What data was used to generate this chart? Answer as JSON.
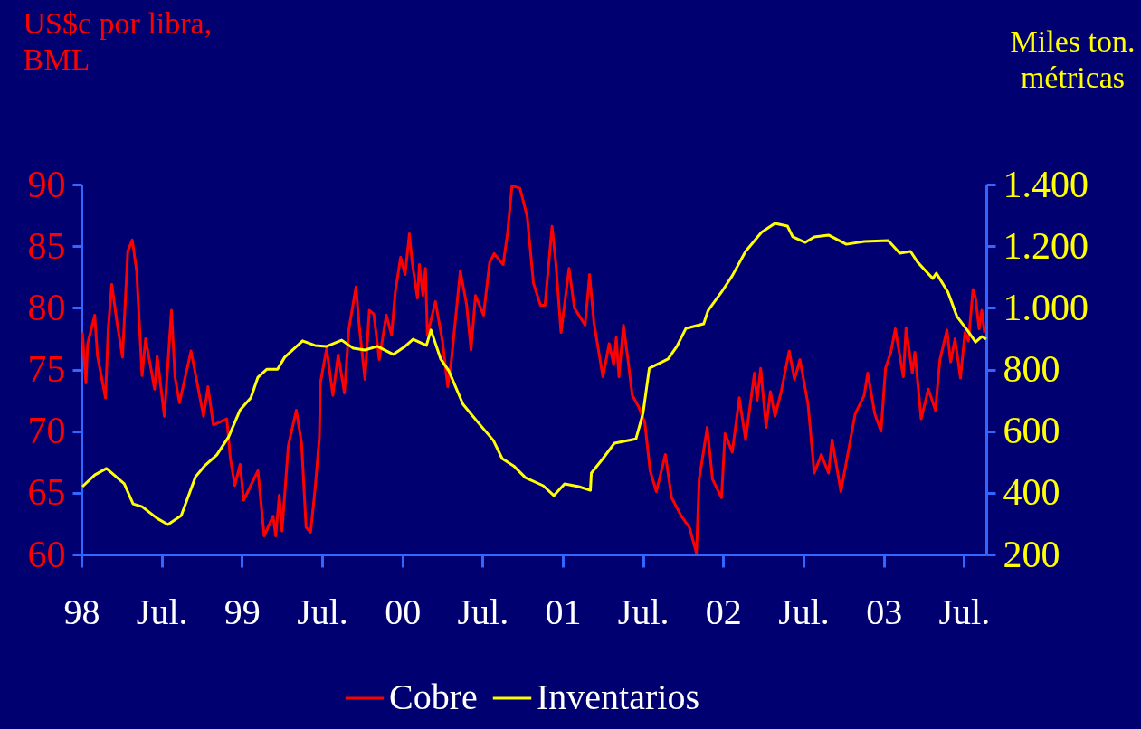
{
  "chart_data": {
    "type": "line",
    "ylabel": "US$c por libra,\nBML",
    "y2label": "Miles ton.\nmétricas",
    "xlim": [
      1998,
      2003.639
    ],
    "xticks": [
      {
        "value": 1998,
        "label": "98"
      },
      {
        "value": 1998.5,
        "label": "Jul."
      },
      {
        "value": 1999,
        "label": "99"
      },
      {
        "value": 1999.5,
        "label": "Jul."
      },
      {
        "value": 2000,
        "label": "00"
      },
      {
        "value": 2000.5,
        "label": "Jul."
      },
      {
        "value": 2001,
        "label": "01"
      },
      {
        "value": 2001.5,
        "label": "Jul."
      },
      {
        "value": 2002,
        "label": "02"
      },
      {
        "value": 2002.5,
        "label": "Jul."
      },
      {
        "value": 2003,
        "label": "03"
      },
      {
        "value": 2003.5,
        "label": "Jul."
      }
    ],
    "ylim": [
      60,
      90
    ],
    "yticks": [
      60,
      65,
      70,
      75,
      80,
      85,
      90
    ],
    "y2lim": [
      200,
      1400
    ],
    "y2ticks": [
      {
        "value": 200,
        "label": "200"
      },
      {
        "value": 400,
        "label": "400"
      },
      {
        "value": 600,
        "label": "600"
      },
      {
        "value": 800,
        "label": "800"
      },
      {
        "value": 1000,
        "label": "1.000"
      },
      {
        "value": 1200,
        "label": "1.200"
      },
      {
        "value": 1400,
        "label": "1.400"
      }
    ],
    "grid": false,
    "legend": "bottom",
    "series": [
      {
        "name": "Cobre",
        "color": "#ff0000",
        "x": [
          1998.006,
          1998.028,
          1998.039,
          1998.083,
          1998.1,
          1998.15,
          1998.167,
          1998.189,
          1998.222,
          1998.256,
          1998.289,
          1998.317,
          1998.344,
          1998.378,
          1998.4,
          1998.456,
          1998.472,
          1998.517,
          1998.561,
          1998.583,
          1998.611,
          1998.683,
          1998.761,
          1998.789,
          1998.822,
          1998.906,
          1998.928,
          1998.956,
          1998.989,
          1999.011,
          1999.1,
          1999.139,
          1999.194,
          1999.211,
          1999.233,
          1999.25,
          1999.289,
          1999.339,
          1999.372,
          1999.4,
          1999.428,
          1999.456,
          1999.483,
          1999.489,
          1999.528,
          1999.567,
          1999.6,
          1999.639,
          1999.667,
          1999.711,
          1999.733,
          1999.767,
          1999.794,
          1999.822,
          1999.856,
          1999.9,
          1999.933,
          1999.956,
          1999.989,
          2000.017,
          2000.044,
          2000.061,
          2000.094,
          2000.106,
          2000.128,
          2000.144,
          2000.156,
          2000.206,
          2000.25,
          2000.283,
          2000.306,
          2000.361,
          2000.4,
          2000.428,
          2000.456,
          2000.506,
          2000.544,
          2000.572,
          2000.628,
          2000.656,
          2000.683,
          2000.733,
          2000.778,
          2000.817,
          2000.861,
          2000.889,
          2000.933,
          2000.956,
          2000.989,
          2001.039,
          2001.072,
          2001.139,
          2001.167,
          2001.194,
          2001.25,
          2001.289,
          2001.317,
          2001.333,
          2001.35,
          2001.378,
          2001.406,
          2001.433,
          2001.472,
          2001.511,
          2001.544,
          2001.583,
          2001.639,
          2001.678,
          2001.739,
          2001.789,
          2001.833,
          2001.85,
          2001.9,
          2001.933,
          2001.989,
          2002.011,
          2002.056,
          2002.1,
          2002.139,
          2002.194,
          2002.211,
          2002.233,
          2002.267,
          2002.294,
          2002.322,
          2002.361,
          2002.411,
          2002.444,
          2002.478,
          2002.528,
          2002.567,
          2002.611,
          2002.656,
          2002.678,
          2002.733,
          2002.767,
          2002.822,
          2002.878,
          2002.9,
          2002.944,
          2002.983,
          2003.011,
          2003.044,
          2003.072,
          2003.122,
          2003.139,
          2003.178,
          2003.194,
          2003.233,
          2003.278,
          2003.322,
          2003.35,
          2003.394,
          2003.417,
          2003.444,
          2003.478,
          2003.506,
          2003.528,
          2003.556,
          2003.572,
          2003.594,
          2003.611,
          2003.628
        ],
        "values": [
          78.0,
          73.9,
          77.1,
          79.4,
          76.1,
          72.7,
          78.3,
          81.9,
          78.8,
          76.0,
          84.6,
          85.5,
          83.0,
          74.5,
          77.5,
          73.4,
          76.1,
          71.2,
          79.8,
          74.4,
          72.3,
          76.5,
          71.2,
          73.6,
          70.5,
          71.0,
          67.8,
          65.6,
          67.3,
          64.4,
          66.8,
          61.5,
          63.1,
          61.5,
          64.8,
          61.9,
          68.8,
          71.7,
          69.0,
          62.2,
          61.8,
          65.3,
          69.5,
          73.9,
          76.7,
          72.9,
          76.2,
          73.1,
          78.3,
          81.7,
          78.3,
          74.2,
          79.8,
          79.5,
          75.8,
          79.4,
          77.8,
          81.3,
          84.1,
          82.7,
          86.0,
          83.7,
          80.8,
          83.5,
          81.0,
          83.2,
          77.8,
          80.5,
          77.3,
          73.6,
          75.8,
          83.0,
          80.3,
          76.6,
          81.0,
          79.4,
          83.7,
          84.4,
          83.5,
          86.1,
          89.9,
          89.7,
          87.4,
          82.0,
          80.2,
          80.2,
          86.6,
          83.7,
          78.0,
          83.2,
          80.0,
          78.6,
          82.7,
          78.8,
          74.4,
          77.1,
          75.4,
          77.6,
          74.4,
          78.6,
          75.8,
          72.9,
          72.0,
          70.7,
          66.8,
          65.1,
          68.1,
          64.6,
          63.1,
          62.2,
          60.1,
          66.1,
          70.3,
          66.1,
          64.6,
          69.8,
          68.3,
          72.7,
          69.3,
          74.7,
          72.5,
          75.1,
          70.3,
          73.2,
          71.2,
          73.2,
          76.5,
          74.2,
          75.8,
          72.2,
          66.6,
          68.1,
          66.6,
          69.3,
          65.1,
          67.5,
          71.4,
          72.9,
          74.7,
          71.4,
          70.0,
          75.1,
          76.4,
          78.3,
          74.4,
          78.4,
          74.7,
          76.4,
          71.0,
          73.4,
          71.7,
          75.8,
          78.2,
          75.6,
          77.5,
          74.3,
          78.0,
          77.3,
          81.5,
          80.8,
          78.3,
          79.8,
          78.0
        ]
      },
      {
        "name": "Inventarios",
        "color": "#ffff00",
        "axis": "y2",
        "x": [
          1998.006,
          1998.083,
          1998.156,
          1998.267,
          1998.322,
          1998.378,
          1998.472,
          1998.539,
          1998.622,
          1998.711,
          1998.767,
          1998.844,
          1998.917,
          1998.989,
          1999.056,
          1999.1,
          1999.156,
          1999.222,
          1999.267,
          1999.378,
          1999.456,
          1999.528,
          1999.622,
          1999.694,
          1999.767,
          1999.844,
          1999.944,
          2000.017,
          2000.067,
          2000.15,
          2000.178,
          2000.239,
          2000.289,
          2000.378,
          2000.472,
          2000.567,
          2000.622,
          2000.694,
          2000.767,
          2000.878,
          2000.944,
          2001.011,
          2001.1,
          2001.172,
          2001.178,
          2001.25,
          2001.322,
          2001.456,
          2001.5,
          2001.539,
          2001.656,
          2001.711,
          2001.767,
          2001.878,
          2001.906,
          2001.989,
          2002.056,
          2002.139,
          2002.239,
          2002.322,
          2002.4,
          2002.433,
          2002.511,
          2002.567,
          2002.656,
          2002.767,
          2002.878,
          2003.028,
          2003.1,
          2003.167,
          2003.211,
          2003.306,
          2003.328,
          2003.4,
          2003.456,
          2003.528,
          2003.572,
          2003.611,
          2003.639
        ],
        "values": [
          420,
          458,
          479,
          429,
          364,
          355,
          317,
          297,
          326,
          452,
          487,
          523,
          581,
          669,
          708,
          775,
          801,
          801,
          840,
          893,
          878,
          875,
          895,
          869,
          863,
          875,
          849,
          875,
          898,
          878,
          928,
          834,
          796,
          687,
          628,
          570,
          511,
          487,
          449,
          423,
          391,
          429,
          420,
          408,
          464,
          511,
          561,
          575,
          658,
          804,
          834,
          875,
          933,
          948,
          992,
          1051,
          1104,
          1183,
          1245,
          1274,
          1265,
          1230,
          1212,
          1230,
          1236,
          1206,
          1215,
          1218,
          1177,
          1183,
          1148,
          1095,
          1112,
          1051,
          972,
          922,
          889,
          907,
          898
        ]
      }
    ]
  }
}
